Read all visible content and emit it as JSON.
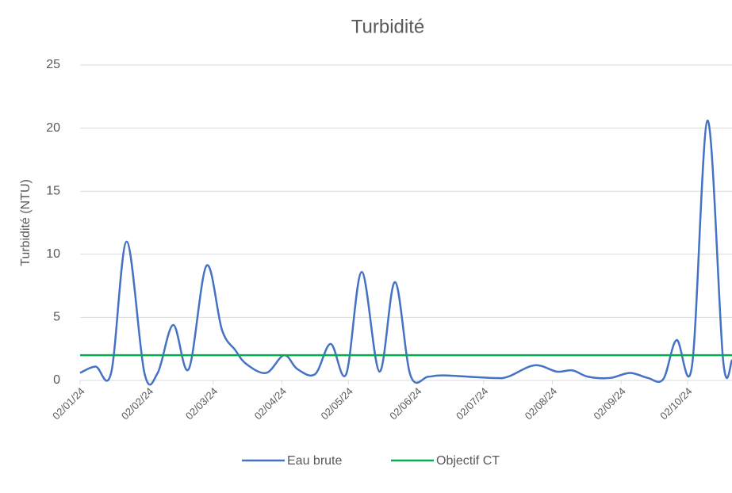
{
  "chart_data": {
    "type": "line",
    "title": "Turbidité",
    "ylabel": "Turbidité (NTU)",
    "xlim": [
      "02/01/24",
      "22/10/24"
    ],
    "xticks": [
      "02/01/24",
      "02/02/24",
      "02/03/24",
      "02/04/24",
      "02/05/24",
      "02/06/24",
      "02/07/24",
      "02/08/24",
      "02/09/24",
      "02/10/24"
    ],
    "ylim": [
      0,
      25
    ],
    "yticks": [
      0,
      5,
      10,
      15,
      20,
      25
    ],
    "grid": true,
    "legend": "bottom",
    "series": [
      {
        "name": "Eau brute",
        "color": "#4472c4",
        "x": [
          "02/01/24",
          "09/01/24",
          "16/01/24",
          "23/01/24",
          "31/01/24",
          "06/02/24",
          "13/02/24",
          "20/02/24",
          "28/02/24",
          "06/03/24",
          "12/03/24",
          "17/03/24",
          "26/03/24",
          "03/04/24",
          "09/04/24",
          "17/04/24",
          "24/04/24",
          "01/05/24",
          "08/05/24",
          "16/05/24",
          "23/05/24",
          "30/05/24",
          "07/06/24",
          "14/06/24",
          "06/07/24",
          "13/07/24",
          "25/07/24",
          "04/08/24",
          "11/08/24",
          "18/08/24",
          "28/08/24",
          "06/09/24",
          "14/09/24",
          "21/09/24",
          "27/09/24",
          "04/10/24",
          "11/10/24",
          "18/10/24",
          "22/10/24"
        ],
        "values": [
          0.6,
          1.1,
          0.6,
          11,
          0.6,
          0.6,
          4.4,
          0.9,
          9.1,
          4,
          2.4,
          1.3,
          0.6,
          2,
          0.9,
          0.5,
          2.9,
          0.5,
          8.6,
          0.7,
          7.8,
          0.4,
          0.3,
          0.4,
          0.2,
          0.3,
          1.2,
          0.7,
          0.8,
          0.3,
          0.2,
          0.6,
          0.2,
          0.1,
          3.2,
          1.2,
          20.6,
          1.6,
          1.6
        ]
      },
      {
        "name": "Objectif CT",
        "color": "#00b050",
        "x": [
          "02/01/24",
          "22/10/24"
        ],
        "values": [
          2,
          2
        ]
      }
    ]
  }
}
